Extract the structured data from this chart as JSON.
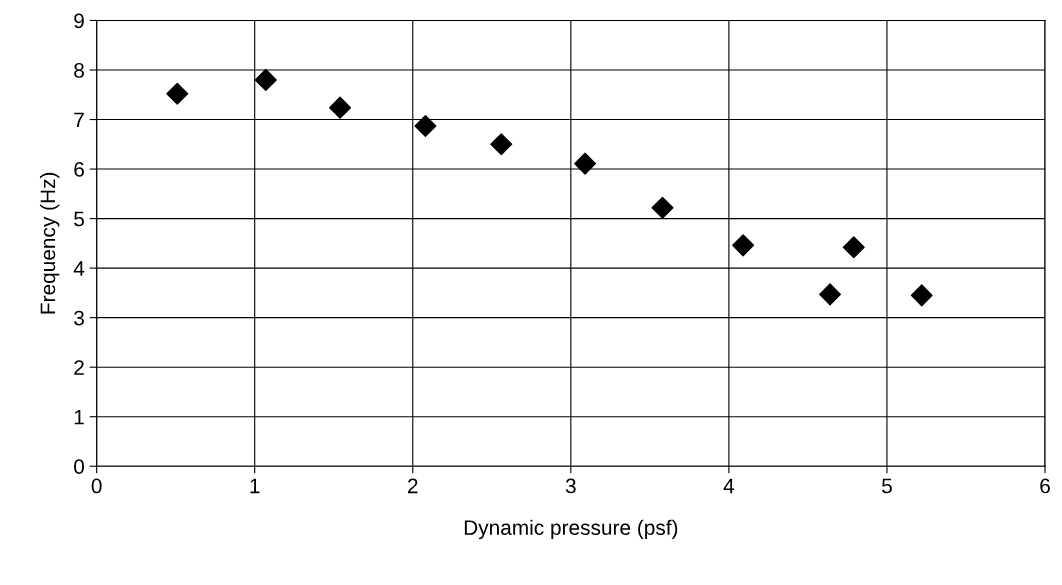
{
  "chart_data": {
    "type": "scatter",
    "xlabel": "Dynamic pressure (psf)",
    "ylabel": "Frequency (Hz)",
    "x": [
      0.51,
      1.07,
      1.54,
      2.08,
      2.56,
      3.09,
      3.58,
      4.09,
      4.64,
      4.79,
      5.22
    ],
    "series": [
      {
        "color": "#000000",
        "values": [
          7.52,
          7.8,
          7.24,
          6.87,
          6.5,
          6.11,
          5.22,
          4.46,
          3.47,
          4.42,
          3.45
        ]
      }
    ],
    "xlim": [
      0,
      6
    ],
    "xticks": [
      0,
      1,
      2,
      3,
      4,
      5,
      6
    ],
    "ylim": [
      0,
      9
    ],
    "yticks": [
      0,
      1,
      2,
      3,
      4,
      5,
      6,
      7,
      8,
      9
    ],
    "grid": true,
    "marker": "diamond",
    "legend": false
  }
}
